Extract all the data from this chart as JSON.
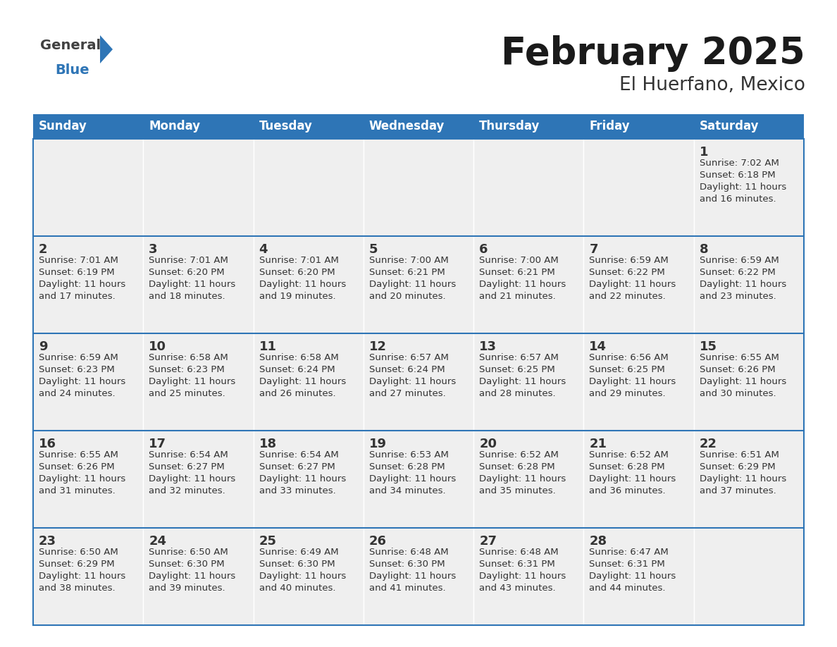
{
  "title": "February 2025",
  "subtitle": "El Huerfano, Mexico",
  "header_bg_color": "#2E75B6",
  "header_text_color": "#FFFFFF",
  "cell_bg_color": "#EFEFEF",
  "day_number_color": "#333333",
  "text_color": "#333333",
  "border_color": "#2E75B6",
  "separator_color": "#FFFFFF",
  "days_of_week": [
    "Sunday",
    "Monday",
    "Tuesday",
    "Wednesday",
    "Thursday",
    "Friday",
    "Saturday"
  ],
  "calendar_data": [
    [
      null,
      null,
      null,
      null,
      null,
      null,
      {
        "day": 1,
        "sunrise": "7:02 AM",
        "sunset": "6:18 PM",
        "minutes": "16"
      }
    ],
    [
      {
        "day": 2,
        "sunrise": "7:01 AM",
        "sunset": "6:19 PM",
        "minutes": "17"
      },
      {
        "day": 3,
        "sunrise": "7:01 AM",
        "sunset": "6:20 PM",
        "minutes": "18"
      },
      {
        "day": 4,
        "sunrise": "7:01 AM",
        "sunset": "6:20 PM",
        "minutes": "19"
      },
      {
        "day": 5,
        "sunrise": "7:00 AM",
        "sunset": "6:21 PM",
        "minutes": "20"
      },
      {
        "day": 6,
        "sunrise": "7:00 AM",
        "sunset": "6:21 PM",
        "minutes": "21"
      },
      {
        "day": 7,
        "sunrise": "6:59 AM",
        "sunset": "6:22 PM",
        "minutes": "22"
      },
      {
        "day": 8,
        "sunrise": "6:59 AM",
        "sunset": "6:22 PM",
        "minutes": "23"
      }
    ],
    [
      {
        "day": 9,
        "sunrise": "6:59 AM",
        "sunset": "6:23 PM",
        "minutes": "24"
      },
      {
        "day": 10,
        "sunrise": "6:58 AM",
        "sunset": "6:23 PM",
        "minutes": "25"
      },
      {
        "day": 11,
        "sunrise": "6:58 AM",
        "sunset": "6:24 PM",
        "minutes": "26"
      },
      {
        "day": 12,
        "sunrise": "6:57 AM",
        "sunset": "6:24 PM",
        "minutes": "27"
      },
      {
        "day": 13,
        "sunrise": "6:57 AM",
        "sunset": "6:25 PM",
        "minutes": "28"
      },
      {
        "day": 14,
        "sunrise": "6:56 AM",
        "sunset": "6:25 PM",
        "minutes": "29"
      },
      {
        "day": 15,
        "sunrise": "6:55 AM",
        "sunset": "6:26 PM",
        "minutes": "30"
      }
    ],
    [
      {
        "day": 16,
        "sunrise": "6:55 AM",
        "sunset": "6:26 PM",
        "minutes": "31"
      },
      {
        "day": 17,
        "sunrise": "6:54 AM",
        "sunset": "6:27 PM",
        "minutes": "32"
      },
      {
        "day": 18,
        "sunrise": "6:54 AM",
        "sunset": "6:27 PM",
        "minutes": "33"
      },
      {
        "day": 19,
        "sunrise": "6:53 AM",
        "sunset": "6:28 PM",
        "minutes": "34"
      },
      {
        "day": 20,
        "sunrise": "6:52 AM",
        "sunset": "6:28 PM",
        "minutes": "35"
      },
      {
        "day": 21,
        "sunrise": "6:52 AM",
        "sunset": "6:28 PM",
        "minutes": "36"
      },
      {
        "day": 22,
        "sunrise": "6:51 AM",
        "sunset": "6:29 PM",
        "minutes": "37"
      }
    ],
    [
      {
        "day": 23,
        "sunrise": "6:50 AM",
        "sunset": "6:29 PM",
        "minutes": "38"
      },
      {
        "day": 24,
        "sunrise": "6:50 AM",
        "sunset": "6:30 PM",
        "minutes": "39"
      },
      {
        "day": 25,
        "sunrise": "6:49 AM",
        "sunset": "6:30 PM",
        "minutes": "40"
      },
      {
        "day": 26,
        "sunrise": "6:48 AM",
        "sunset": "6:30 PM",
        "minutes": "41"
      },
      {
        "day": 27,
        "sunrise": "6:48 AM",
        "sunset": "6:31 PM",
        "minutes": "43"
      },
      {
        "day": 28,
        "sunrise": "6:47 AM",
        "sunset": "6:31 PM",
        "minutes": "44"
      },
      null
    ]
  ],
  "num_cols": 7,
  "num_rows": 5,
  "fig_width": 11.88,
  "fig_height": 9.18,
  "dpi": 100,
  "title_fontsize": 38,
  "subtitle_fontsize": 19,
  "header_fontsize": 12,
  "day_num_fontsize": 13,
  "cell_text_fontsize": 9.5,
  "logo_general_fontsize": 14,
  "logo_blue_fontsize": 14
}
